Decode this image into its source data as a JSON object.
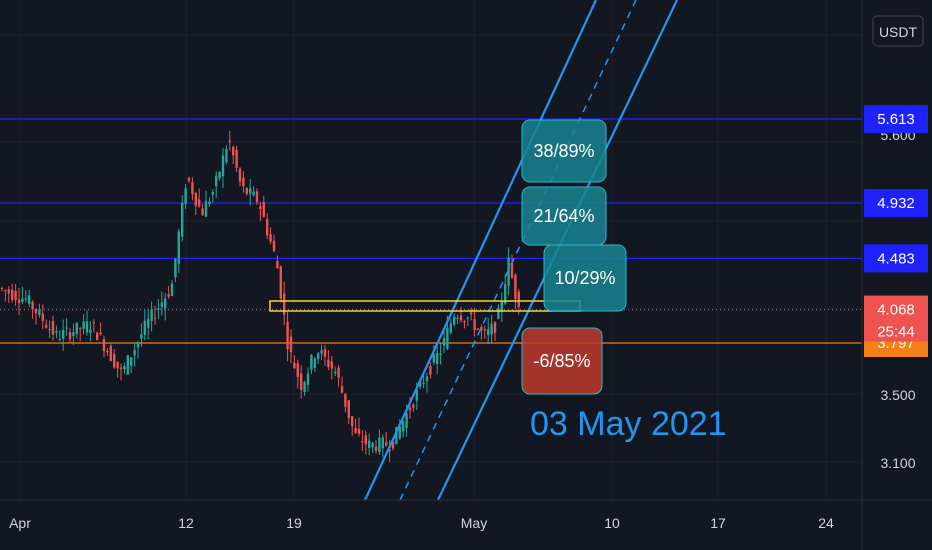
{
  "chart_data": {
    "type": "candlestick",
    "currency_label": "USDT",
    "x_tick_labels": [
      "Apr",
      "12",
      "19",
      "May",
      "10",
      "17",
      "24"
    ],
    "y_tick_labels": [
      "5.600",
      "3.500",
      "3.100"
    ],
    "y_range": [
      2.95,
      6.1
    ],
    "price_levels": [
      {
        "label": "5.613",
        "value": 5.613,
        "color": "#1e22ff"
      },
      {
        "label": "4.932",
        "value": 4.932,
        "color": "#1e22ff"
      },
      {
        "label": "4.483",
        "value": 4.483,
        "color": "#1e22ff"
      },
      {
        "label": "3.797",
        "value": 3.797,
        "color": "#f57f17"
      }
    ],
    "current_price": {
      "label": "4.068",
      "value": 4.068,
      "countdown": "25:44",
      "color": "#ef5350"
    },
    "target_boxes": [
      {
        "text": "38/89%",
        "color": "#17848f"
      },
      {
        "text": "21/64%",
        "color": "#17848f"
      },
      {
        "text": "10/29%",
        "color": "#17848f"
      },
      {
        "text": "-6/85%",
        "color": "#c0392b"
      }
    ],
    "date_annotation": "03 May 2021",
    "colors": {
      "up": "#26a69a",
      "down": "#ef5350",
      "channel": "#2196f3",
      "highlight": "#f7d33a"
    }
  }
}
